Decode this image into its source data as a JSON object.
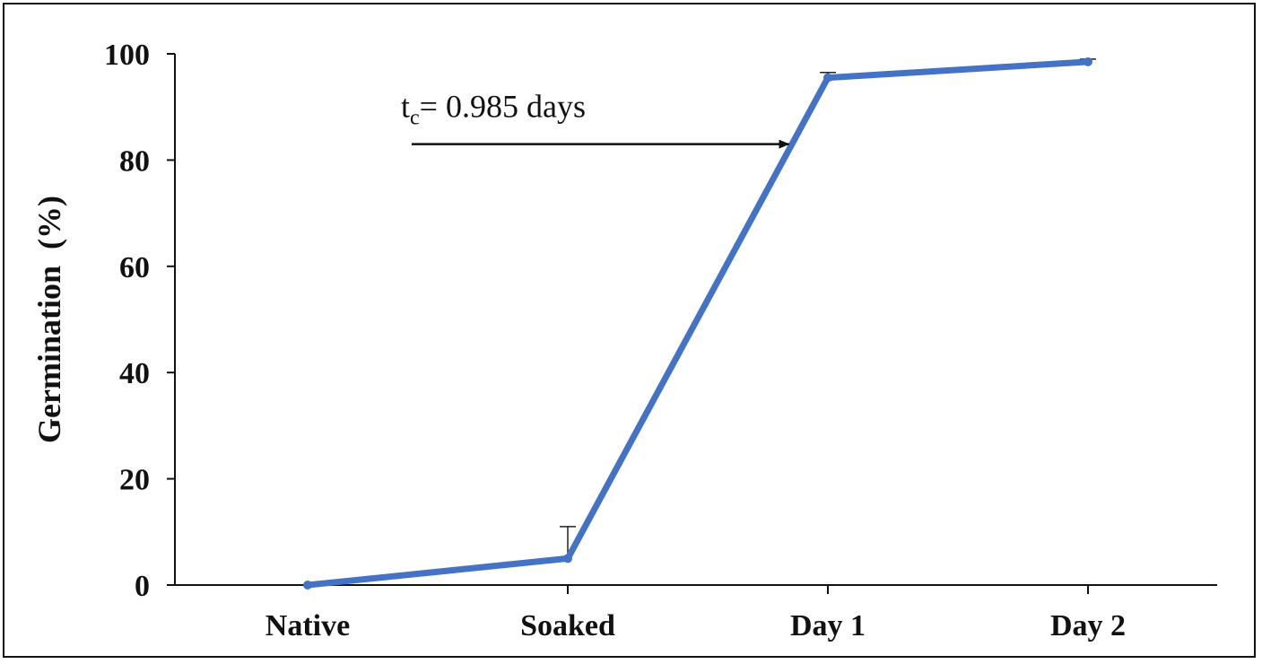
{
  "chart_data": {
    "type": "line",
    "categories": [
      "Native",
      "Soaked",
      "Day 1",
      "Day 2"
    ],
    "series": [
      {
        "values": [
          0,
          5,
          95.5,
          98.5
        ],
        "error_plus": [
          0,
          6,
          1,
          0.5
        ],
        "color": "#4472C4"
      }
    ],
    "xlabel": "",
    "ylabel": "Germination  (%)",
    "ylim": [
      0,
      100
    ],
    "yticks": [
      0,
      20,
      40,
      60,
      80,
      100
    ],
    "grid": false,
    "annotation": {
      "prefix": "t",
      "subscript": "c",
      "text": "= 0.985  days",
      "arrow_from": {
        "category_index": 0.4,
        "y": 83
      },
      "arrow_to": {
        "category_index": 1.85,
        "y": 83
      }
    }
  }
}
